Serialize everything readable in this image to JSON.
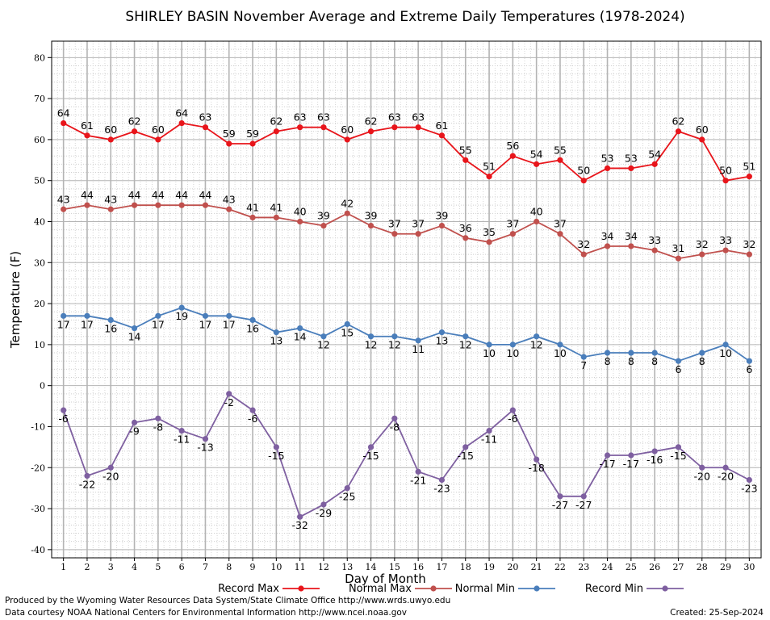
{
  "chart_data": {
    "type": "line",
    "title": "SHIRLEY BASIN November Average and Extreme Daily Temperatures (1978-2024)",
    "xlabel": "Day of Month",
    "ylabel": "Temperature (F)",
    "x": [
      1,
      2,
      3,
      4,
      5,
      6,
      7,
      8,
      9,
      10,
      11,
      12,
      13,
      14,
      15,
      16,
      17,
      18,
      19,
      20,
      21,
      22,
      23,
      24,
      25,
      26,
      27,
      28,
      29,
      30
    ],
    "xlim": [
      0.5,
      30.5
    ],
    "ylim": [
      -42,
      84
    ],
    "yticks": [
      -40,
      -30,
      -20,
      -10,
      0,
      10,
      20,
      30,
      40,
      50,
      60,
      70,
      80
    ],
    "grid": true,
    "legend_position": "bottom",
    "series": [
      {
        "name": "Record Max",
        "color": "#e8151b",
        "values": [
          64,
          61,
          60,
          62,
          60,
          64,
          63,
          59,
          59,
          62,
          63,
          63,
          60,
          62,
          63,
          63,
          61,
          55,
          51,
          56,
          54,
          55,
          50,
          53,
          53,
          54,
          62,
          60,
          50,
          51
        ]
      },
      {
        "name": "Normal Max",
        "color": "#c0504d",
        "values": [
          43,
          44,
          43,
          44,
          44,
          44,
          44,
          43,
          41,
          41,
          40,
          39,
          42,
          39,
          37,
          37,
          39,
          36,
          35,
          37,
          40,
          37,
          32,
          34,
          34,
          33,
          31,
          32,
          33,
          32
        ]
      },
      {
        "name": "Normal Min",
        "color": "#4a7ebb",
        "values": [
          17,
          17,
          16,
          14,
          17,
          19,
          17,
          17,
          16,
          13,
          14,
          12,
          15,
          12,
          12,
          11,
          13,
          12,
          10,
          10,
          12,
          10,
          7,
          8,
          8,
          8,
          6,
          8,
          10,
          6
        ]
      },
      {
        "name": "Record Min",
        "color": "#7e5fa0",
        "values": [
          -6,
          -22,
          -20,
          -9,
          -8,
          -11,
          -13,
          -2,
          -6,
          -15,
          -32,
          -29,
          -25,
          -15,
          -8,
          -21,
          -23,
          -15,
          -11,
          -6,
          -18,
          -27,
          -27,
          -17,
          -17,
          -16,
          -15,
          -20,
          -20,
          -23
        ]
      }
    ]
  },
  "footer": {
    "produced_by": "Produced by the Wyoming Water Resources Data System/State Climate Office http://www.wrds.uwyo.edu",
    "courtesy": "Data courtesy NOAA National Centers for Environmental Information http://www.ncei.noaa.gov",
    "created": "Created:  25-Sep-2024"
  }
}
